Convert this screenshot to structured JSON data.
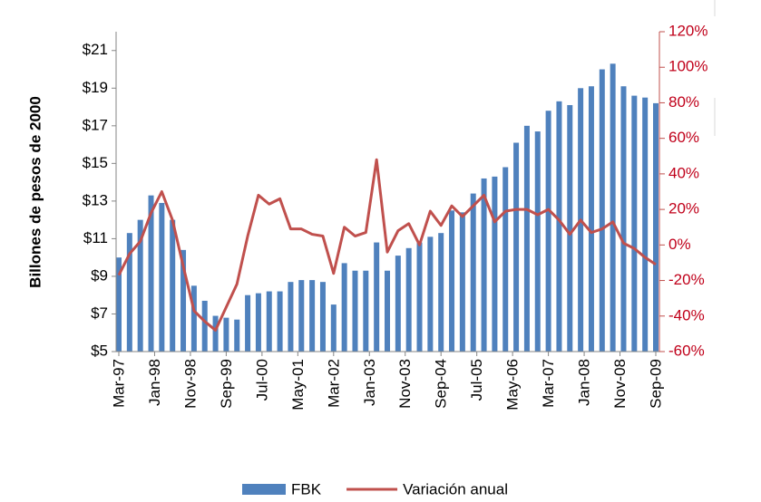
{
  "chart_data": {
    "type": "bar-line",
    "y_axis_label": "Billones de pesos de 2000",
    "x": [
      "1997-03",
      "1997-06",
      "1997-09",
      "1997-12",
      "1998-03",
      "1998-06",
      "1998-09",
      "1998-12",
      "1999-03",
      "1999-06",
      "1999-09",
      "1999-12",
      "2000-03",
      "2000-06",
      "2000-09",
      "2000-12",
      "2001-03",
      "2001-06",
      "2001-09",
      "2001-12",
      "2002-03",
      "2002-06",
      "2002-09",
      "2002-12",
      "2003-03",
      "2003-06",
      "2003-09",
      "2003-12",
      "2004-03",
      "2004-06",
      "2004-09",
      "2004-12",
      "2005-03",
      "2005-06",
      "2005-09",
      "2005-12",
      "2006-03",
      "2006-06",
      "2006-09",
      "2006-12",
      "2007-03",
      "2007-06",
      "2007-09",
      "2007-12",
      "2008-03",
      "2008-06",
      "2008-09",
      "2008-12",
      "2009-03",
      "2009-06",
      "2009-09"
    ],
    "xlim": [
      "1997-03",
      "2009-09"
    ],
    "xticks": [
      {
        "value": "1997-03",
        "label": "Mar-97"
      },
      {
        "value": "1998-01",
        "label": "Jan-98"
      },
      {
        "value": "1998-11",
        "label": "Nov-98"
      },
      {
        "value": "1999-09",
        "label": "Sep-99"
      },
      {
        "value": "2000-07",
        "label": "Jul-00"
      },
      {
        "value": "2001-05",
        "label": "May-01"
      },
      {
        "value": "2002-03",
        "label": "Mar-02"
      },
      {
        "value": "2003-01",
        "label": "Jan-03"
      },
      {
        "value": "2003-11",
        "label": "Nov-03"
      },
      {
        "value": "2004-09",
        "label": "Sep-04"
      },
      {
        "value": "2005-07",
        "label": "Jul-05"
      },
      {
        "value": "2006-05",
        "label": "May-06"
      },
      {
        "value": "2007-03",
        "label": "Mar-07"
      },
      {
        "value": "2008-01",
        "label": "Jan-08"
      },
      {
        "value": "2008-11",
        "label": "Nov-08"
      },
      {
        "value": "2009-09",
        "label": "Sep-09"
      }
    ],
    "series": [
      {
        "name": "FBK",
        "type": "bar",
        "color": "#4f81bd",
        "values": [
          10.0,
          11.3,
          12.0,
          13.3,
          12.9,
          12.0,
          10.4,
          8.5,
          7.7,
          6.9,
          6.8,
          6.7,
          8.0,
          8.1,
          8.2,
          8.2,
          8.7,
          8.8,
          8.8,
          8.7,
          7.5,
          9.7,
          9.3,
          9.3,
          10.8,
          9.3,
          10.1,
          10.5,
          10.8,
          11.1,
          11.3,
          12.5,
          12.4,
          13.4,
          14.2,
          14.3,
          14.8,
          16.1,
          17.0,
          16.7,
          17.8,
          18.3,
          18.1,
          19.0,
          19.1,
          20.0,
          20.3,
          19.1,
          18.6,
          18.5,
          18.2
        ]
      },
      {
        "name": "Variación anual",
        "type": "line",
        "axis": "y2",
        "color": "#c0504d",
        "values": [
          -17,
          -5,
          2,
          18,
          30,
          14,
          -12,
          -37,
          -43,
          -48,
          -35,
          -22,
          5,
          28,
          23,
          26,
          9,
          9,
          6,
          5,
          -16,
          10,
          5,
          7,
          48,
          -4,
          8,
          12,
          0,
          19,
          11,
          22,
          16,
          22,
          28,
          13,
          19,
          20,
          20,
          17,
          20,
          14,
          6,
          14,
          7,
          9,
          13,
          1,
          -2,
          -7,
          -11
        ]
      }
    ],
    "ylim": [
      5,
      22
    ],
    "yticks": [
      {
        "value": 5,
        "label": "$5"
      },
      {
        "value": 7,
        "label": "$7"
      },
      {
        "value": 9,
        "label": "$9"
      },
      {
        "value": 11,
        "label": "$11"
      },
      {
        "value": 13,
        "label": "$13"
      },
      {
        "value": 15,
        "label": "$15"
      },
      {
        "value": 17,
        "label": "$17"
      },
      {
        "value": 19,
        "label": "$19"
      },
      {
        "value": 21,
        "label": "$21"
      }
    ],
    "y2lim": [
      -60,
      120
    ],
    "y2ticks": [
      {
        "value": -60,
        "label": "-60%"
      },
      {
        "value": -40,
        "label": "-40%"
      },
      {
        "value": -20,
        "label": "-20%"
      },
      {
        "value": 0,
        "label": "0%"
      },
      {
        "value": 20,
        "label": "20%"
      },
      {
        "value": 40,
        "label": "40%"
      },
      {
        "value": 60,
        "label": "60%"
      },
      {
        "value": 80,
        "label": "80%"
      },
      {
        "value": 100,
        "label": "100%"
      },
      {
        "value": 120,
        "label": "120%"
      }
    ],
    "legend": "bottom"
  }
}
